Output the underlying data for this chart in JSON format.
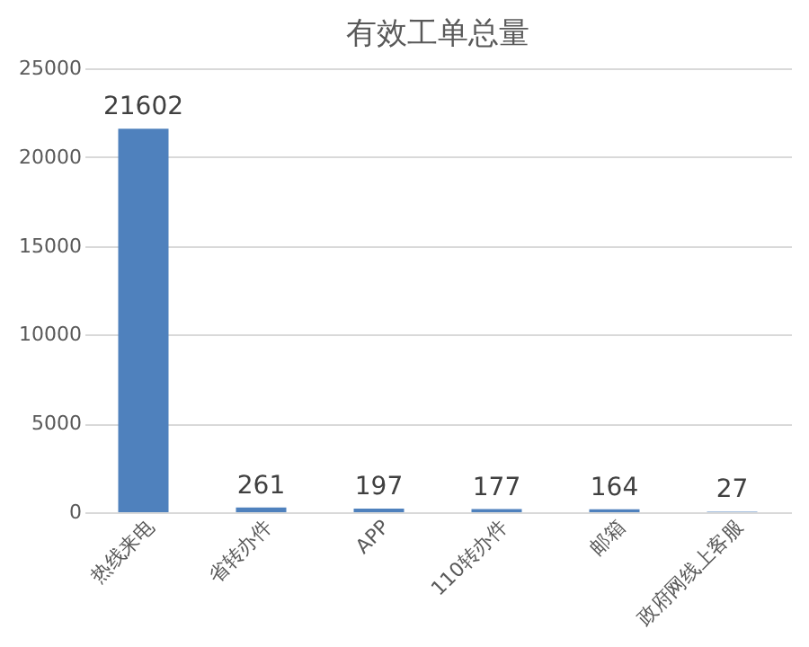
{
  "chart_data": {
    "type": "bar",
    "title": "有效工单总量",
    "categories": [
      "热线来电",
      "省转办件",
      "APP",
      "110转办件",
      "邮箱",
      "政府网线上客服"
    ],
    "values": [
      21602,
      261,
      197,
      177,
      164,
      27
    ],
    "color": "#4f81bd",
    "ylim": [
      0,
      25000
    ],
    "yticks": [
      0,
      5000,
      10000,
      15000,
      20000,
      25000
    ],
    "grid": "y",
    "data_labels": true
  }
}
